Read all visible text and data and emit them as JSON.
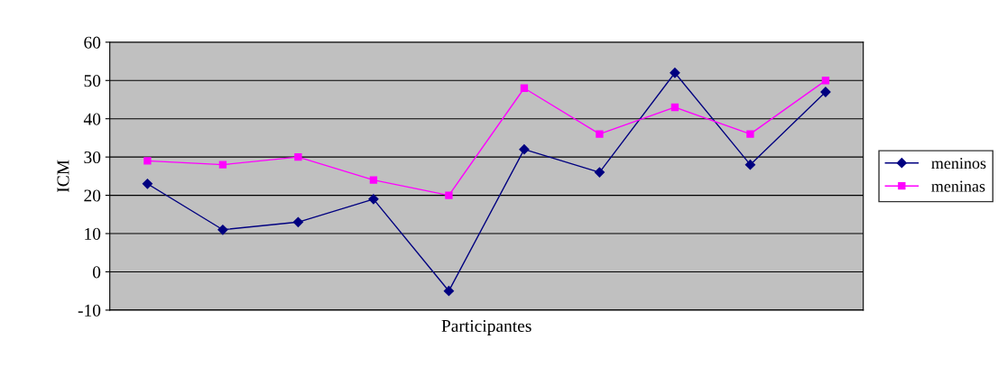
{
  "chart_data": {
    "type": "line",
    "xlabel": "Participantes",
    "ylabel": "ICM",
    "categories": [
      null,
      null,
      null,
      null,
      null,
      null,
      null,
      null,
      null,
      null
    ],
    "series": [
      {
        "name": "meninos",
        "color": "#000080",
        "marker": "diamond",
        "values": [
          23,
          11,
          13,
          19,
          -5,
          32,
          26,
          52,
          28,
          47
        ]
      },
      {
        "name": "meninas",
        "color": "#ff00ff",
        "marker": "square",
        "values": [
          29,
          28,
          30,
          24,
          20,
          48,
          36,
          43,
          36,
          50
        ]
      }
    ],
    "ylim": [
      -10,
      60
    ],
    "yticks": [
      -10,
      0,
      10,
      20,
      30,
      40,
      50,
      60
    ],
    "grid": "y",
    "legend": "right",
    "line_style": "solid"
  }
}
